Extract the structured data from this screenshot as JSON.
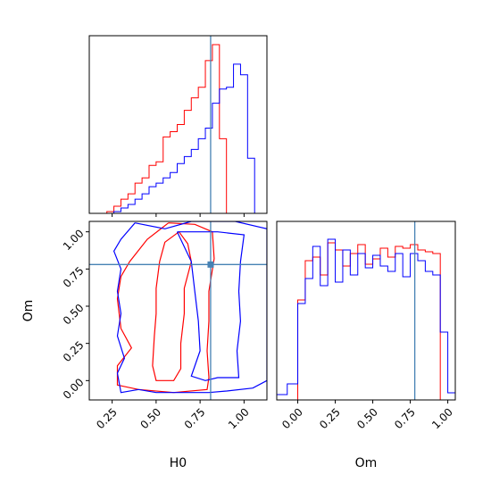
{
  "chart_data": {
    "type": "corner",
    "parameters": [
      "H0",
      "Om"
    ],
    "truths": {
      "H0": 0.81,
      "Om": 0.78
    },
    "colors": {
      "red_series": "#ff0000",
      "blue_series": "#0000ff",
      "truth_line": "#4682b4"
    },
    "panels": [
      {
        "panel": "H0 marginal",
        "type": "step-histogram",
        "x_range": [
          0.12,
          1.13
        ],
        "y_range": [
          0,
          1.0
        ],
        "bin_edges": [
          0.22,
          0.26,
          0.3,
          0.34,
          0.38,
          0.42,
          0.46,
          0.5,
          0.54,
          0.58,
          0.62,
          0.66,
          0.7,
          0.74,
          0.78,
          0.82,
          0.86,
          0.9,
          0.94,
          0.98,
          1.02,
          1.06
        ],
        "series": [
          {
            "color": "red",
            "values": [
              0.01,
              0.04,
              0.08,
              0.11,
              0.17,
              0.2,
              0.27,
              0.29,
              0.43,
              0.46,
              0.5,
              0.58,
              0.65,
              0.71,
              0.86,
              0.95,
              0.42,
              0,
              0,
              0,
              0
            ]
          },
          {
            "color": "blue",
            "values": [
              0,
              0.01,
              0.03,
              0.05,
              0.08,
              0.11,
              0.15,
              0.17,
              0.2,
              0.23,
              0.28,
              0.32,
              0.36,
              0.42,
              0.48,
              0.62,
              0.7,
              0.71,
              0.84,
              0.78,
              0.31
            ]
          }
        ],
        "x_tick_labels": []
      },
      {
        "panel": "Om marginal",
        "type": "step-histogram",
        "x_range": [
          -0.14,
          1.05
        ],
        "y_range": [
          0,
          1.0
        ],
        "bin_edges": [
          -0.14,
          -0.07,
          0.0,
          0.05,
          0.1,
          0.15,
          0.2,
          0.25,
          0.3,
          0.35,
          0.4,
          0.45,
          0.5,
          0.55,
          0.6,
          0.65,
          0.7,
          0.75,
          0.8,
          0.85,
          0.9,
          0.95,
          1.0,
          1.05
        ],
        "series": [
          {
            "color": "red",
            "values": [
              0,
              0,
              0.56,
              0.78,
              0.8,
              0.7,
              0.88,
              0.84,
              0.75,
              0.82,
              0.87,
              0.76,
              0.79,
              0.85,
              0.8,
              0.86,
              0.85,
              0.87,
              0.84,
              0.83,
              0.82,
              0,
              0
            ]
          },
          {
            "color": "blue",
            "values": [
              0.03,
              0.09,
              0.54,
              0.68,
              0.86,
              0.64,
              0.9,
              0.66,
              0.84,
              0.7,
              0.82,
              0.74,
              0.81,
              0.75,
              0.72,
              0.82,
              0.69,
              0.82,
              0.78,
              0.72,
              0.7,
              0.38,
              0.04
            ]
          }
        ],
        "x_tick_labels": [
          "0.00",
          "0.25",
          "0.50",
          "0.75",
          "1.00"
        ],
        "xlabel": "Om"
      },
      {
        "panel": "H0 vs Om joint",
        "type": "contour",
        "x_range": [
          0.12,
          1.13
        ],
        "y_range": [
          -0.13,
          1.07
        ],
        "x_tick_labels": [
          "0.25",
          "0.50",
          "0.75",
          "1.00"
        ],
        "y_tick_labels": [
          "0.00",
          "0.25",
          "0.50",
          "0.75",
          "1.00"
        ],
        "xlabel": "H0",
        "ylabel": "Om",
        "contours": [
          {
            "color": "red",
            "level": "outer",
            "points": [
              [
                0.57,
                1.06
              ],
              [
                0.72,
                1.05
              ],
              [
                0.82,
                1.0
              ],
              [
                0.83,
                0.82
              ],
              [
                0.8,
                0.6
              ],
              [
                0.8,
                0.4
              ],
              [
                0.79,
                0.2
              ],
              [
                0.8,
                0.02
              ],
              [
                0.79,
                -0.06
              ],
              [
                0.6,
                -0.08
              ],
              [
                0.4,
                -0.06
              ],
              [
                0.28,
                -0.03
              ],
              [
                0.28,
                0.1
              ],
              [
                0.36,
                0.22
              ],
              [
                0.3,
                0.35
              ],
              [
                0.28,
                0.55
              ],
              [
                0.3,
                0.7
              ],
              [
                0.35,
                0.8
              ],
              [
                0.45,
                0.95
              ],
              [
                0.57,
                1.06
              ]
            ]
          },
          {
            "color": "red",
            "level": "inner",
            "points": [
              [
                0.63,
                1.0
              ],
              [
                0.68,
                0.92
              ],
              [
                0.7,
                0.8
              ],
              [
                0.66,
                0.62
              ],
              [
                0.66,
                0.45
              ],
              [
                0.64,
                0.25
              ],
              [
                0.64,
                0.08
              ],
              [
                0.6,
                0.0
              ],
              [
                0.5,
                0.0
              ],
              [
                0.48,
                0.1
              ],
              [
                0.49,
                0.3
              ],
              [
                0.5,
                0.45
              ],
              [
                0.5,
                0.62
              ],
              [
                0.52,
                0.8
              ],
              [
                0.55,
                0.93
              ],
              [
                0.63,
                1.0
              ]
            ]
          },
          {
            "color": "blue",
            "level": "outer",
            "points": [
              [
                0.38,
                1.06
              ],
              [
                0.55,
                1.02
              ],
              [
                0.7,
                1.07
              ],
              [
                0.95,
                1.07
              ],
              [
                1.13,
                1.02
              ],
              [
                1.13,
                0.0
              ],
              [
                1.05,
                -0.05
              ],
              [
                0.9,
                -0.07
              ],
              [
                0.8,
                -0.08
              ],
              [
                0.5,
                -0.08
              ],
              [
                0.4,
                -0.06
              ],
              [
                0.3,
                -0.08
              ],
              [
                0.28,
                0.05
              ],
              [
                0.32,
                0.15
              ],
              [
                0.28,
                0.3
              ],
              [
                0.3,
                0.45
              ],
              [
                0.28,
                0.6
              ],
              [
                0.3,
                0.75
              ],
              [
                0.26,
                0.87
              ],
              [
                0.3,
                0.95
              ],
              [
                0.38,
                1.06
              ]
            ]
          },
          {
            "color": "blue",
            "level": "inner",
            "points": [
              [
                0.62,
                1.0
              ],
              [
                0.85,
                1.0
              ],
              [
                1.0,
                0.98
              ],
              [
                0.98,
                0.8
              ],
              [
                0.97,
                0.6
              ],
              [
                0.98,
                0.4
              ],
              [
                0.96,
                0.2
              ],
              [
                0.97,
                0.02
              ],
              [
                0.85,
                0.02
              ],
              [
                0.78,
                0.0
              ],
              [
                0.7,
                0.03
              ],
              [
                0.75,
                0.2
              ],
              [
                0.74,
                0.4
              ],
              [
                0.72,
                0.6
              ],
              [
                0.7,
                0.8
              ],
              [
                0.62,
                1.0
              ]
            ]
          }
        ]
      }
    ]
  }
}
